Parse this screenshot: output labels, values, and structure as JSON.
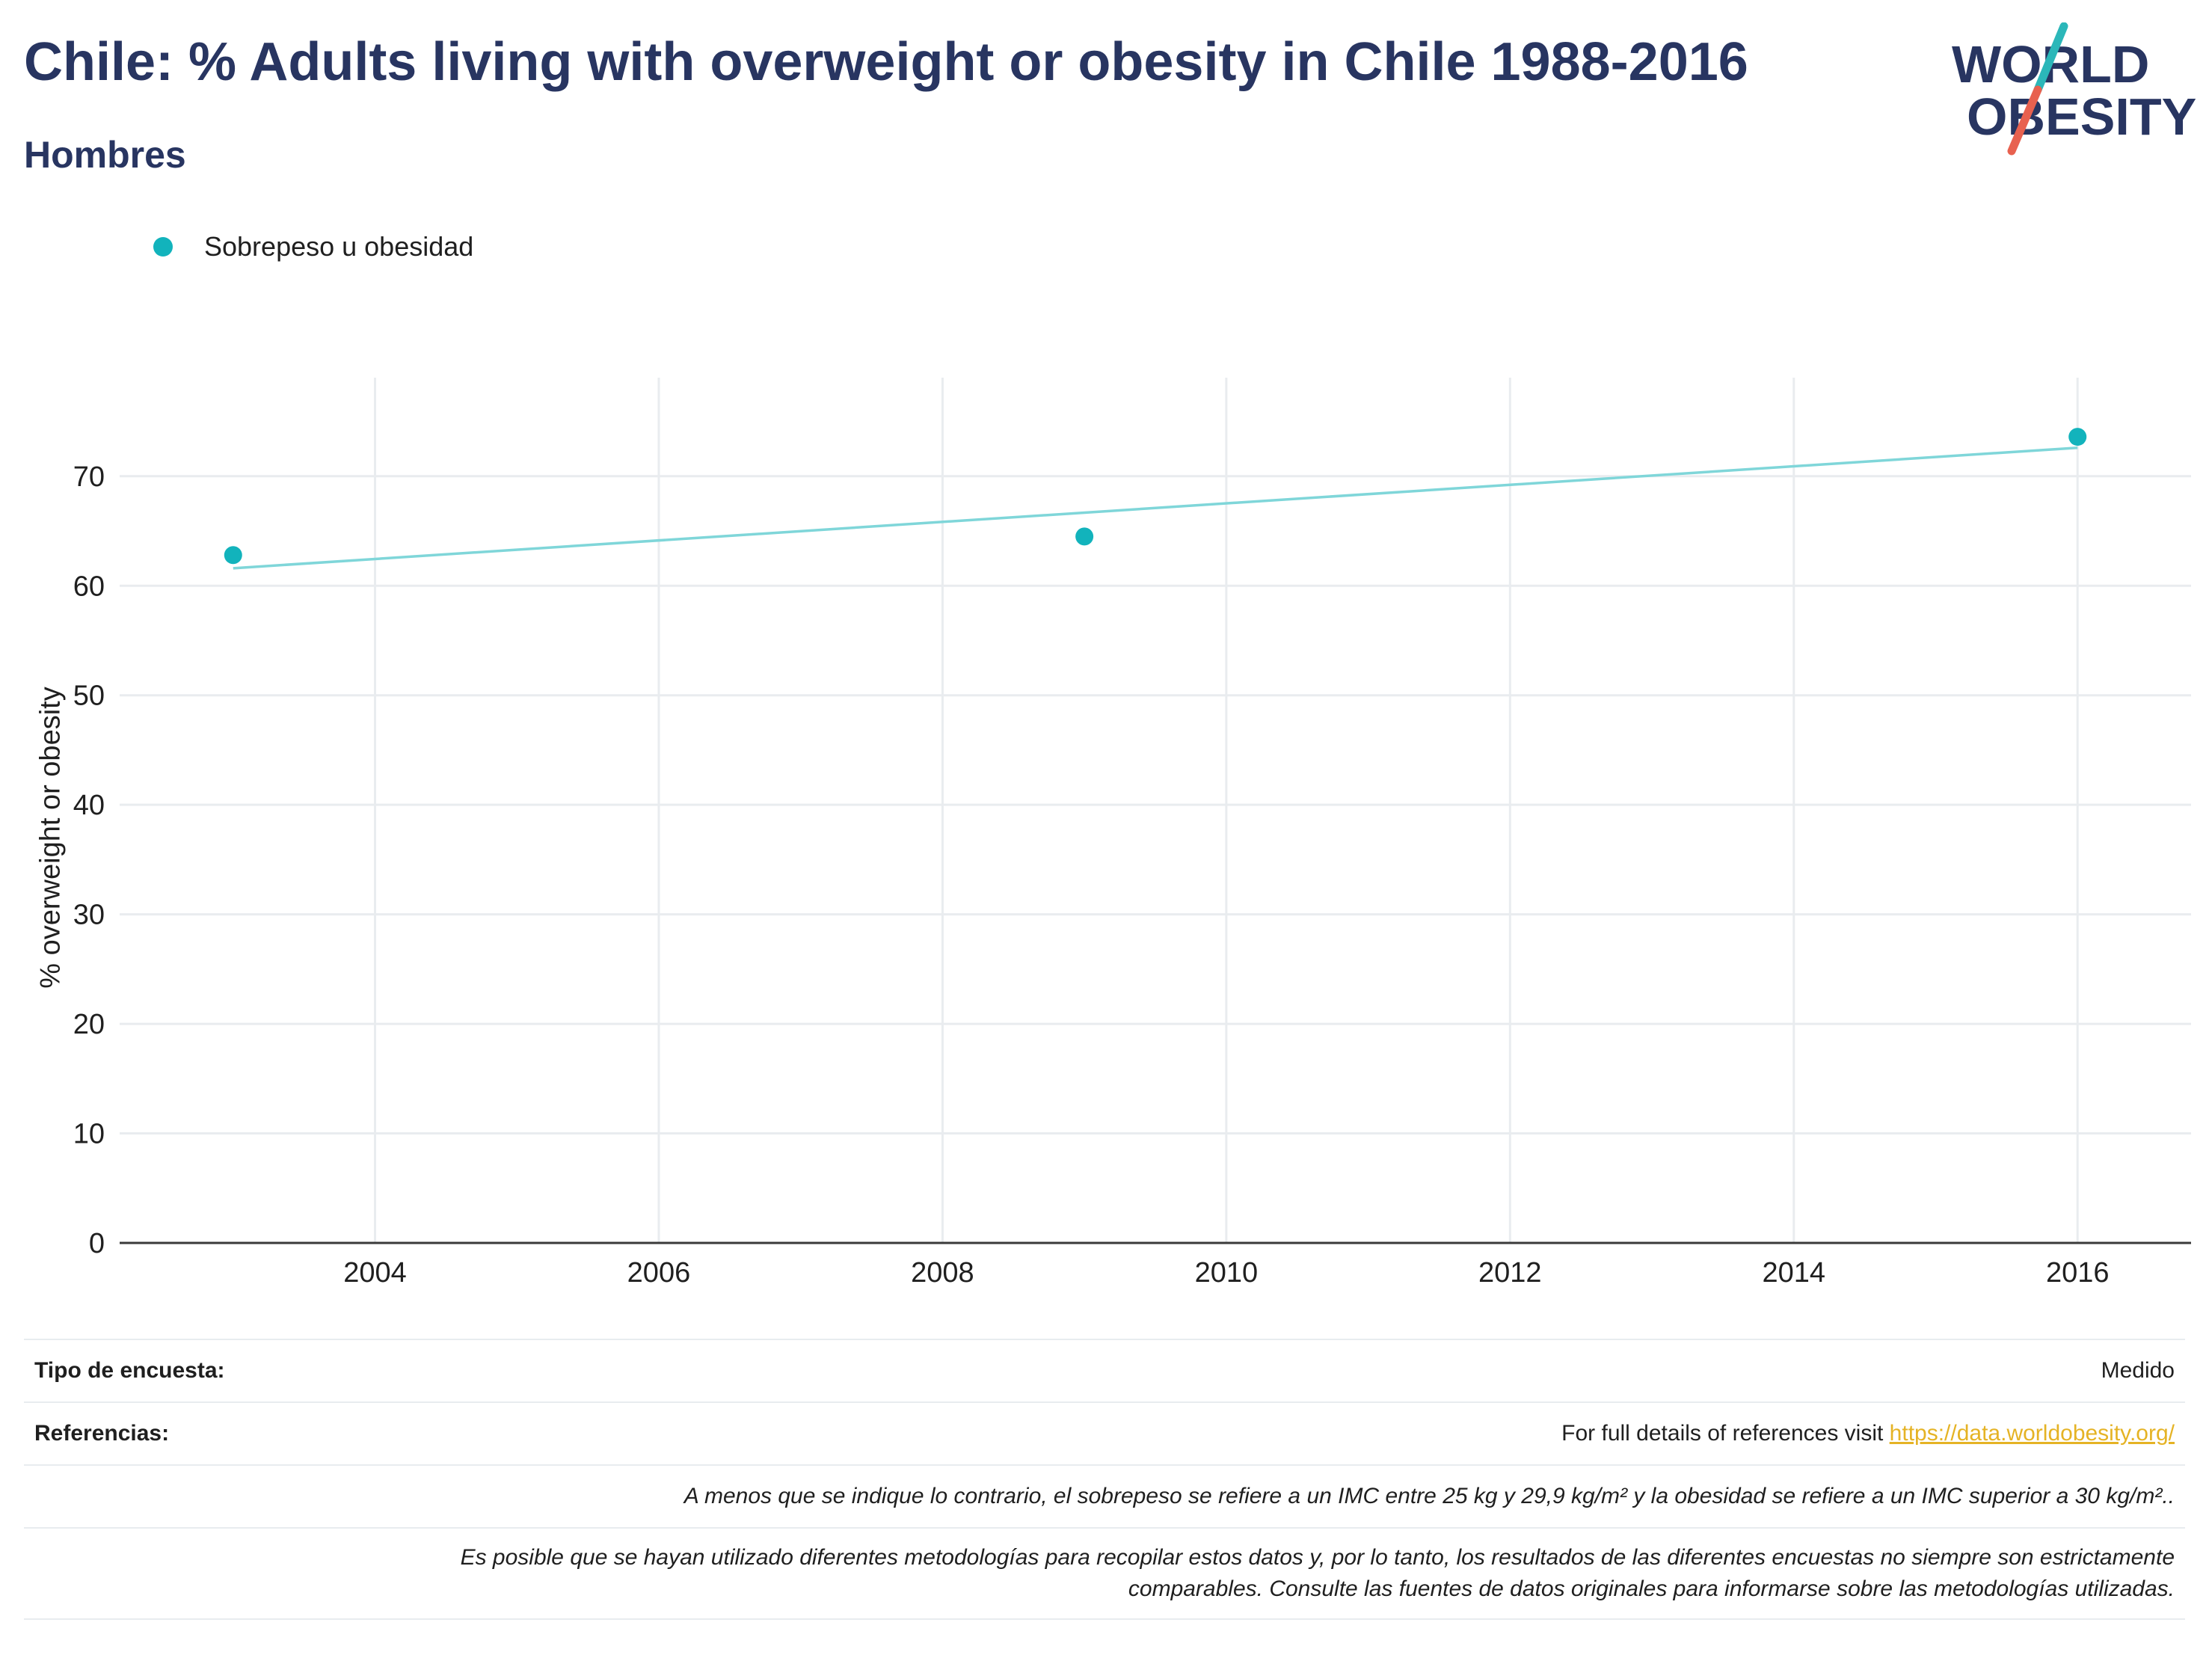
{
  "header": {
    "title": "Chile: % Adults living with overweight or obesity in Chile 1988-2016",
    "subtitle": "Hombres"
  },
  "logo": {
    "line1": "WORLD",
    "line2": "OBESITY",
    "colors": {
      "text": "#283561",
      "accent_teal": "#2bb7b9",
      "accent_red": "#e8614f"
    }
  },
  "legend": {
    "series_label": "Sobrepeso u obesidad",
    "color": "#12b3bc"
  },
  "chart_data": {
    "type": "scatter",
    "title": "Chile: % Adults living with overweight or obesity in Chile 1988-2016",
    "subtitle": "Hombres",
    "xlabel": "",
    "ylabel": "% overweight or obesity",
    "xlim": [
      2002.2,
      2016.8
    ],
    "ylim": [
      0,
      79
    ],
    "x_ticks": [
      2004,
      2006,
      2008,
      2010,
      2012,
      2014,
      2016
    ],
    "y_ticks": [
      0,
      10,
      20,
      30,
      40,
      50,
      60,
      70
    ],
    "grid": true,
    "legend_position": "top-left",
    "series": [
      {
        "name": "Sobrepeso u obesidad",
        "x": [
          2003,
          2009,
          2016
        ],
        "y": [
          62.8,
          64.5,
          73.6
        ],
        "color": "#12b3bc"
      }
    ],
    "trendline": {
      "x": [
        2003,
        2016
      ],
      "y": [
        61.6,
        72.6
      ],
      "color": "#7fd6d9"
    }
  },
  "footer": {
    "survey_type_label": "Tipo de encuesta:",
    "survey_type_value": "Medido",
    "references_label": "Referencias:",
    "references_text": "For full details of references visit",
    "references_link": "https://data.worldobesity.org/",
    "note1": "A menos que se indique lo contrario, el sobrepeso se refiere a un IMC entre 25 kg y 29,9 kg/m² y la obesidad se refiere a un IMC superior a 30 kg/m²..",
    "note2_line1": "Es posible que se hayan utilizado diferentes metodologías para recopilar estos datos y, por lo tanto, los resultados de las diferentes encuestas no siempre son estrictamente",
    "note2_line2": "comparables. Consulte las fuentes de datos originales para informarse sobre las metodologías utilizadas."
  }
}
